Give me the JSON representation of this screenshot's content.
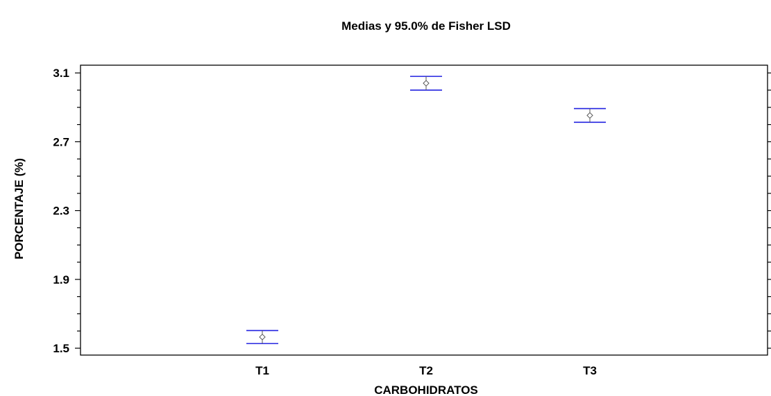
{
  "chart_data": {
    "type": "scatter",
    "title": "Medias y 95.0% de Fisher LSD",
    "xlabel": "CARBOHIDRATOS",
    "ylabel": "PORCENTAJE (%)",
    "categories": [
      "T1",
      "T2",
      "T3"
    ],
    "series": [
      {
        "values": [
          1.565,
          3.04,
          2.853
        ],
        "lower": [
          1.527,
          3.0,
          2.813
        ],
        "upper": [
          1.603,
          3.08,
          2.893
        ]
      }
    ],
    "ylim": [
      1.46,
      3.145
    ],
    "yticks": [
      1.5,
      1.9,
      2.3,
      2.7,
      3.1
    ],
    "ytick_labels": [
      "1.5",
      "1.9",
      "2.3",
      "2.7",
      "3.1"
    ],
    "grid": false,
    "colors": {
      "interval": "#2020e0",
      "marker": "#555555",
      "axis": "#000000"
    }
  }
}
